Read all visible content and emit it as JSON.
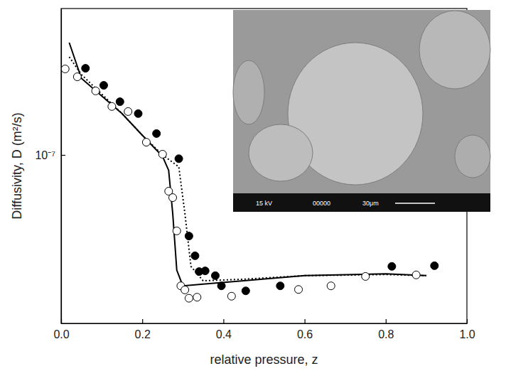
{
  "chart_data": {
    "type": "scatter",
    "x_label": "relative pressure, z",
    "y_label": "Diffusivity, D (m²/s)",
    "xlim": [
      0,
      1
    ],
    "xticks": [
      {
        "value": 0,
        "label": "0.0"
      },
      0.2,
      0.4,
      0.6,
      0.8,
      {
        "value": 1,
        "label": "1.0"
      }
    ],
    "ylim": [
      1e-08,
      7.4e-07
    ],
    "yticks": [
      {
        "value": 1e-07,
        "label": "10⁻⁷"
      }
    ],
    "log": "y",
    "grid": false,
    "annotations": [
      "15 kV",
      "00000",
      "30μm"
    ],
    "series": [
      {
        "type": "scatter",
        "marker": "circle-open",
        "color": "#000000",
        "x": [
          0.01,
          0.04,
          0.085,
          0.125,
          0.165,
          0.21,
          0.25,
          0.265,
          0.275,
          0.285,
          0.295,
          0.305,
          0.315,
          0.335,
          0.42,
          0.585,
          0.665,
          0.75,
          0.875
        ],
        "values": [
          3.24e-07,
          2.91e-07,
          2.4e-07,
          1.94e-07,
          1.81e-07,
          1.19e-07,
          1.01e-07,
          6.09e-08,
          5.58e-08,
          3.54e-08,
          1.67e-08,
          1.58e-08,
          1.41e-08,
          1.43e-08,
          1.45e-08,
          1.59e-08,
          1.67e-08,
          1.9e-08,
          1.94e-08
        ]
      },
      {
        "type": "scatter",
        "marker": "circle-filled",
        "color": "#000000",
        "x": [
          0.06,
          0.105,
          0.145,
          0.19,
          0.235,
          0.29,
          0.315,
          0.33,
          0.34,
          0.355,
          0.38,
          0.395,
          0.455,
          0.54,
          0.815,
          0.92
        ],
        "values": [
          3.27e-07,
          2.59e-07,
          2.07e-07,
          1.76e-07,
          1.34e-07,
          9.5e-08,
          3.3e-08,
          2.52e-08,
          2.03e-08,
          2.05e-08,
          1.92e-08,
          1.67e-08,
          1.56e-08,
          1.67e-08,
          2.18e-08,
          2.2e-08
        ]
      },
      {
        "type": "line",
        "line_style": "solid",
        "color": "#000000",
        "x": [
          0.02,
          0.05,
          0.1,
          0.15,
          0.2,
          0.25,
          0.265,
          0.275,
          0.285,
          0.3,
          0.35,
          0.45,
          0.6,
          0.8,
          0.9
        ],
        "values": [
          4.64e-07,
          2.85e-07,
          2.24e-07,
          1.76e-07,
          1.31e-07,
          9.8e-08,
          8.1e-08,
          4.5e-08,
          2.07e-08,
          1.67e-08,
          1.71e-08,
          1.79e-08,
          1.92e-08,
          1.97e-08,
          1.92e-08
        ]
      },
      {
        "type": "line",
        "line_style": "dotted",
        "color": "#000000",
        "x": [
          0.02,
          0.05,
          0.1,
          0.15,
          0.2,
          0.25,
          0.29,
          0.305,
          0.32,
          0.35,
          0.45,
          0.6,
          0.8,
          0.9
        ],
        "values": [
          3.82e-07,
          3e-07,
          2.3e-07,
          1.76e-07,
          1.31e-07,
          1e-07,
          8.5e-08,
          4.5e-08,
          2.18e-08,
          1.79e-08,
          1.83e-08,
          1.92e-08,
          1.95e-08,
          1.92e-08
        ]
      }
    ]
  }
}
